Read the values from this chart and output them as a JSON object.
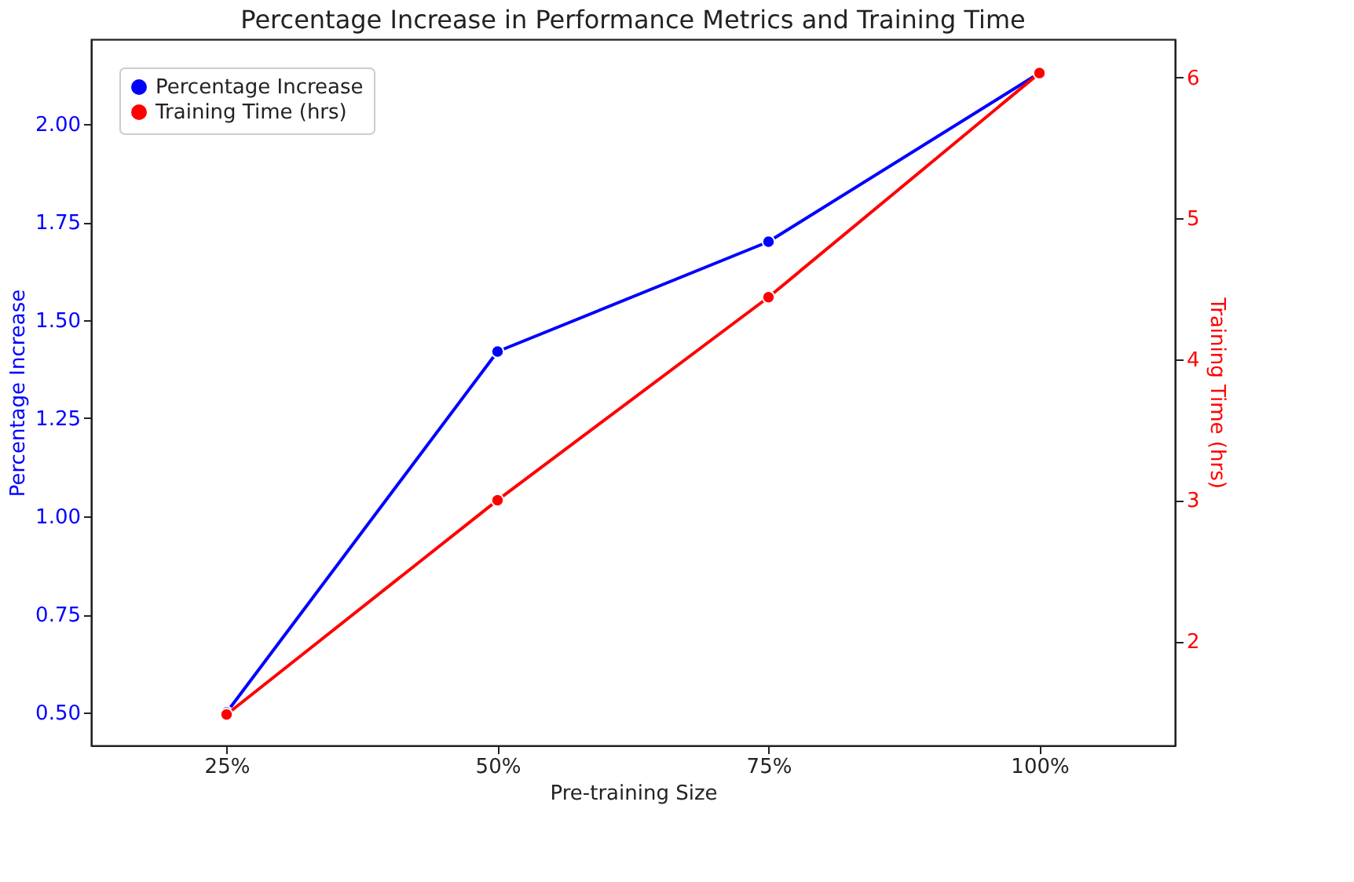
{
  "chart_data": {
    "type": "line",
    "title": "Percentage Increase in Performance Metrics and Training Time",
    "xlabel": "Pre-training Size",
    "ylabel": "Percentage Increase",
    "y2label": "Training Time (hrs)",
    "categories": [
      "25%",
      "50%",
      "75%",
      "100%"
    ],
    "series": [
      {
        "name": "Percentage Increase",
        "color": "#0000ff",
        "values": [
          0.5,
          1.42,
          1.7,
          2.13
        ]
      },
      {
        "name": "Training Time (hrs)",
        "color": "#ff0000",
        "axis": "y2",
        "values": [
          1.48,
          3.0,
          4.44,
          6.03
        ]
      }
    ],
    "ylim": [
      0.416,
      2.216
    ],
    "yticks": [
      {
        "value": 0.5,
        "label": "0.50"
      },
      0.75,
      {
        "value": 1.0,
        "label": "1.00"
      },
      1.25,
      {
        "value": 1.5,
        "label": "1.50"
      },
      1.75,
      {
        "value": 2.0,
        "label": "2.00"
      }
    ],
    "y2lim": [
      1.26,
      6.27
    ],
    "y2ticks": [
      2,
      3,
      4,
      5,
      6
    ],
    "legend": "top left",
    "marker": "circle",
    "line_style": "solid",
    "grid": false
  }
}
